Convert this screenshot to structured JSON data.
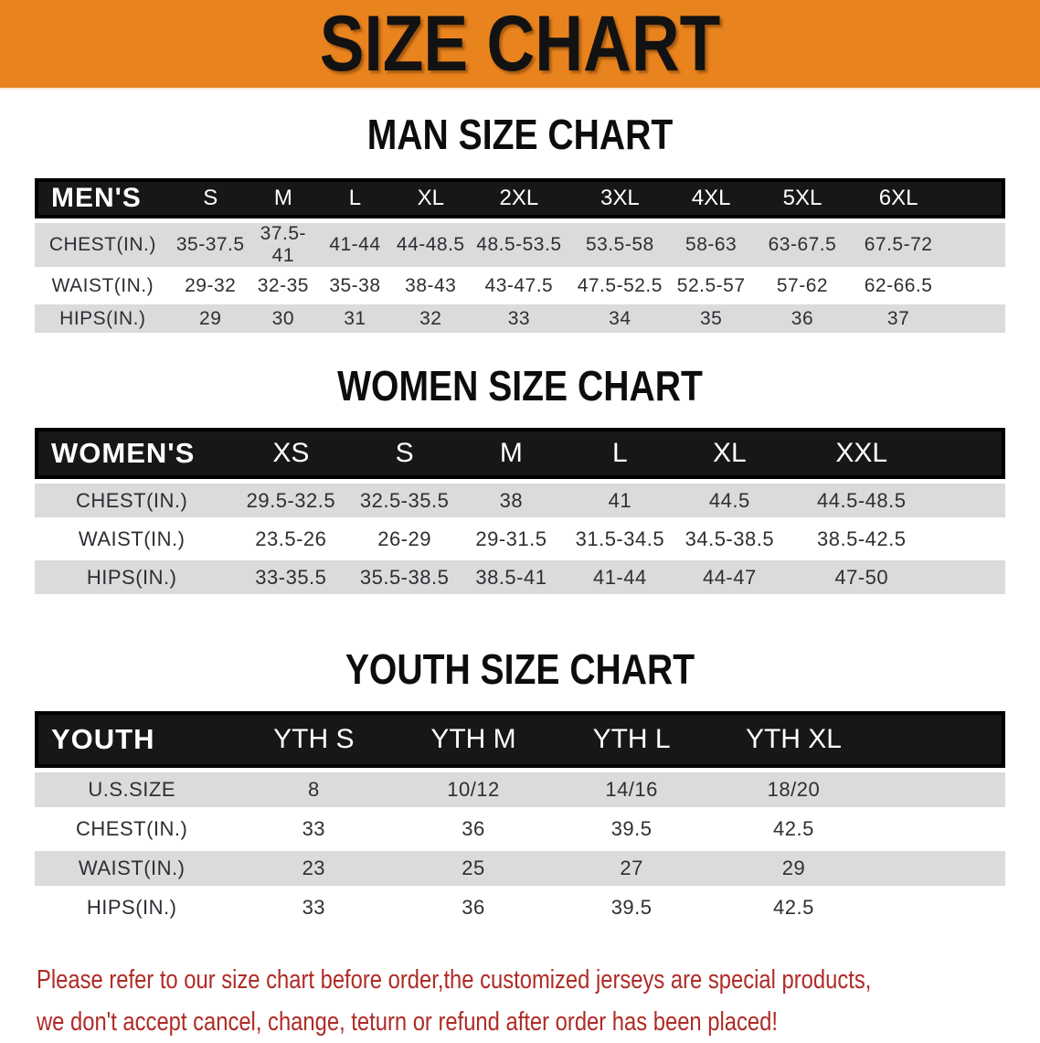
{
  "banner": {
    "title": "SIZE CHART"
  },
  "colors": {
    "banner-orange": "#E9831E",
    "header-bg": "#171717",
    "stripe-gray": "#DBDBDB",
    "note-red": "#AF2B26"
  },
  "men": {
    "heading": "MAN SIZE CHART",
    "table": {
      "label": "MEN'S",
      "sizes": [
        "S",
        "M",
        "L",
        "XL",
        "2XL",
        "3XL",
        "4XL",
        "5XL",
        "6XL"
      ],
      "rows": [
        {
          "label": "CHEST(IN.)",
          "values": [
            "35-37.5",
            "37.5-41",
            "41-44",
            "44-48.5",
            "48.5-53.5",
            "53.5-58",
            "58-63",
            "63-67.5",
            "67.5-72"
          ]
        },
        {
          "label": "WAIST(IN.)",
          "values": [
            "29-32",
            "32-35",
            "35-38",
            "38-43",
            "43-47.5",
            "47.5-52.5",
            "52.5-57",
            "57-62",
            "62-66.5"
          ]
        },
        {
          "label": "HIPS(IN.)",
          "values": [
            "29",
            "30",
            "31",
            "32",
            "33",
            "34",
            "35",
            "36",
            "37"
          ]
        }
      ]
    }
  },
  "women": {
    "heading": "WOMEN SIZE CHART",
    "table": {
      "label": "WOMEN'S",
      "sizes": [
        "XS",
        "S",
        "M",
        "L",
        "XL",
        "XXL"
      ],
      "rows": [
        {
          "label": "CHEST(IN.)",
          "values": [
            "29.5-32.5",
            "32.5-35.5",
            "38",
            "41",
            "44.5",
            "44.5-48.5"
          ]
        },
        {
          "label": "WAIST(IN.)",
          "values": [
            "23.5-26",
            "26-29",
            "29-31.5",
            "31.5-34.5",
            "34.5-38.5",
            "38.5-42.5"
          ]
        },
        {
          "label": "HIPS(IN.)",
          "values": [
            "33-35.5",
            "35.5-38.5",
            "38.5-41",
            "41-44",
            "44-47",
            "47-50"
          ]
        }
      ]
    }
  },
  "youth": {
    "heading": "YOUTH SIZE CHART",
    "table": {
      "label": "YOUTH",
      "sizes": [
        "YTH S",
        "YTH M",
        "YTH L",
        "YTH XL"
      ],
      "rows": [
        {
          "label": "U.S.SIZE",
          "values": [
            "8",
            "10/12",
            "14/16",
            "18/20"
          ]
        },
        {
          "label": "CHEST(IN.)",
          "values": [
            "33",
            "36",
            "39.5",
            "42.5"
          ]
        },
        {
          "label": "WAIST(IN.)",
          "values": [
            "23",
            "25",
            "27",
            "29"
          ]
        },
        {
          "label": "HIPS(IN.)",
          "values": [
            "33",
            "36",
            "39.5",
            "42.5"
          ]
        }
      ]
    }
  },
  "note": {
    "line1": "Please refer to our size chart before order,the customized jerseys are special products,",
    "line2": "we don't accept cancel, change, teturn or refund after order has been placed!"
  }
}
